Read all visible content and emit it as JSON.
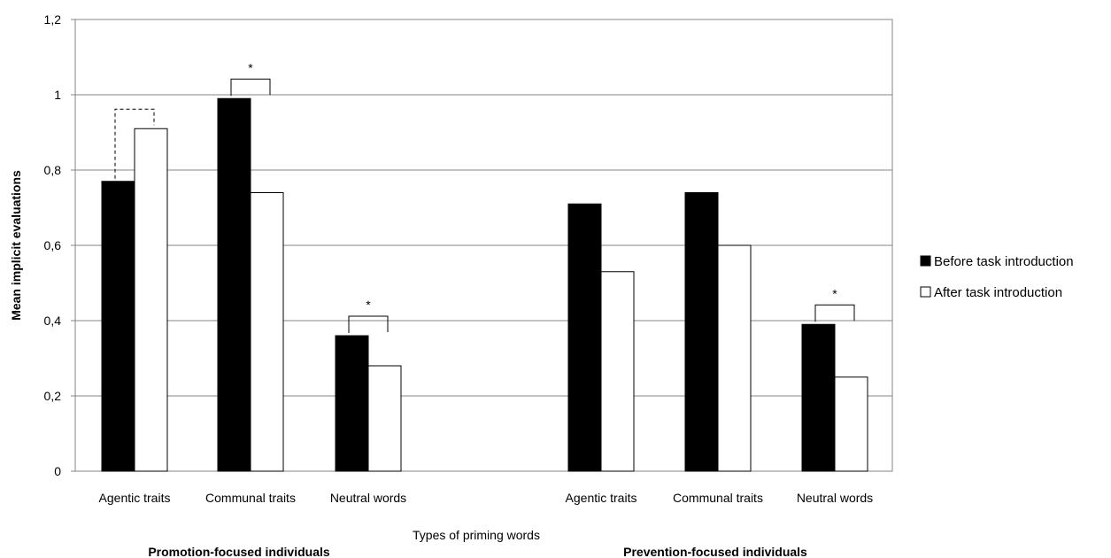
{
  "chart_data": {
    "type": "bar",
    "title": "",
    "xlabel": "Types of priming words",
    "ylabel": "Mean implicit evaluations",
    "ylim": [
      0,
      1.2
    ],
    "yticks": [
      "0",
      "0,2",
      "0,4",
      "0,6",
      "0,8",
      "1",
      "1,2"
    ],
    "grid": true,
    "legend_position": "right",
    "groups": [
      {
        "label": "Promotion-focused individuals",
        "categories": [
          "Agentic traits",
          "Communal traits",
          "Neutral words"
        ]
      },
      {
        "label": "Prevention-focused individuals",
        "categories": [
          "Agentic traits",
          "Communal traits",
          "Neutral words"
        ]
      }
    ],
    "series": [
      {
        "name": "Before task introduction",
        "color": "#000000",
        "values": [
          0.77,
          0.99,
          0.36,
          0.71,
          0.74,
          0.39
        ]
      },
      {
        "name": "After task introduction",
        "color": "#ffffff",
        "values": [
          0.91,
          0.74,
          0.28,
          0.53,
          0.6,
          0.25
        ]
      }
    ],
    "significance": [
      {
        "category_index": 0,
        "style": "dashed",
        "star": ""
      },
      {
        "category_index": 1,
        "style": "solid",
        "star": "*"
      },
      {
        "category_index": 2,
        "style": "solid",
        "star": "*"
      },
      {
        "category_index": 5,
        "style": "solid",
        "star": "*"
      }
    ]
  }
}
